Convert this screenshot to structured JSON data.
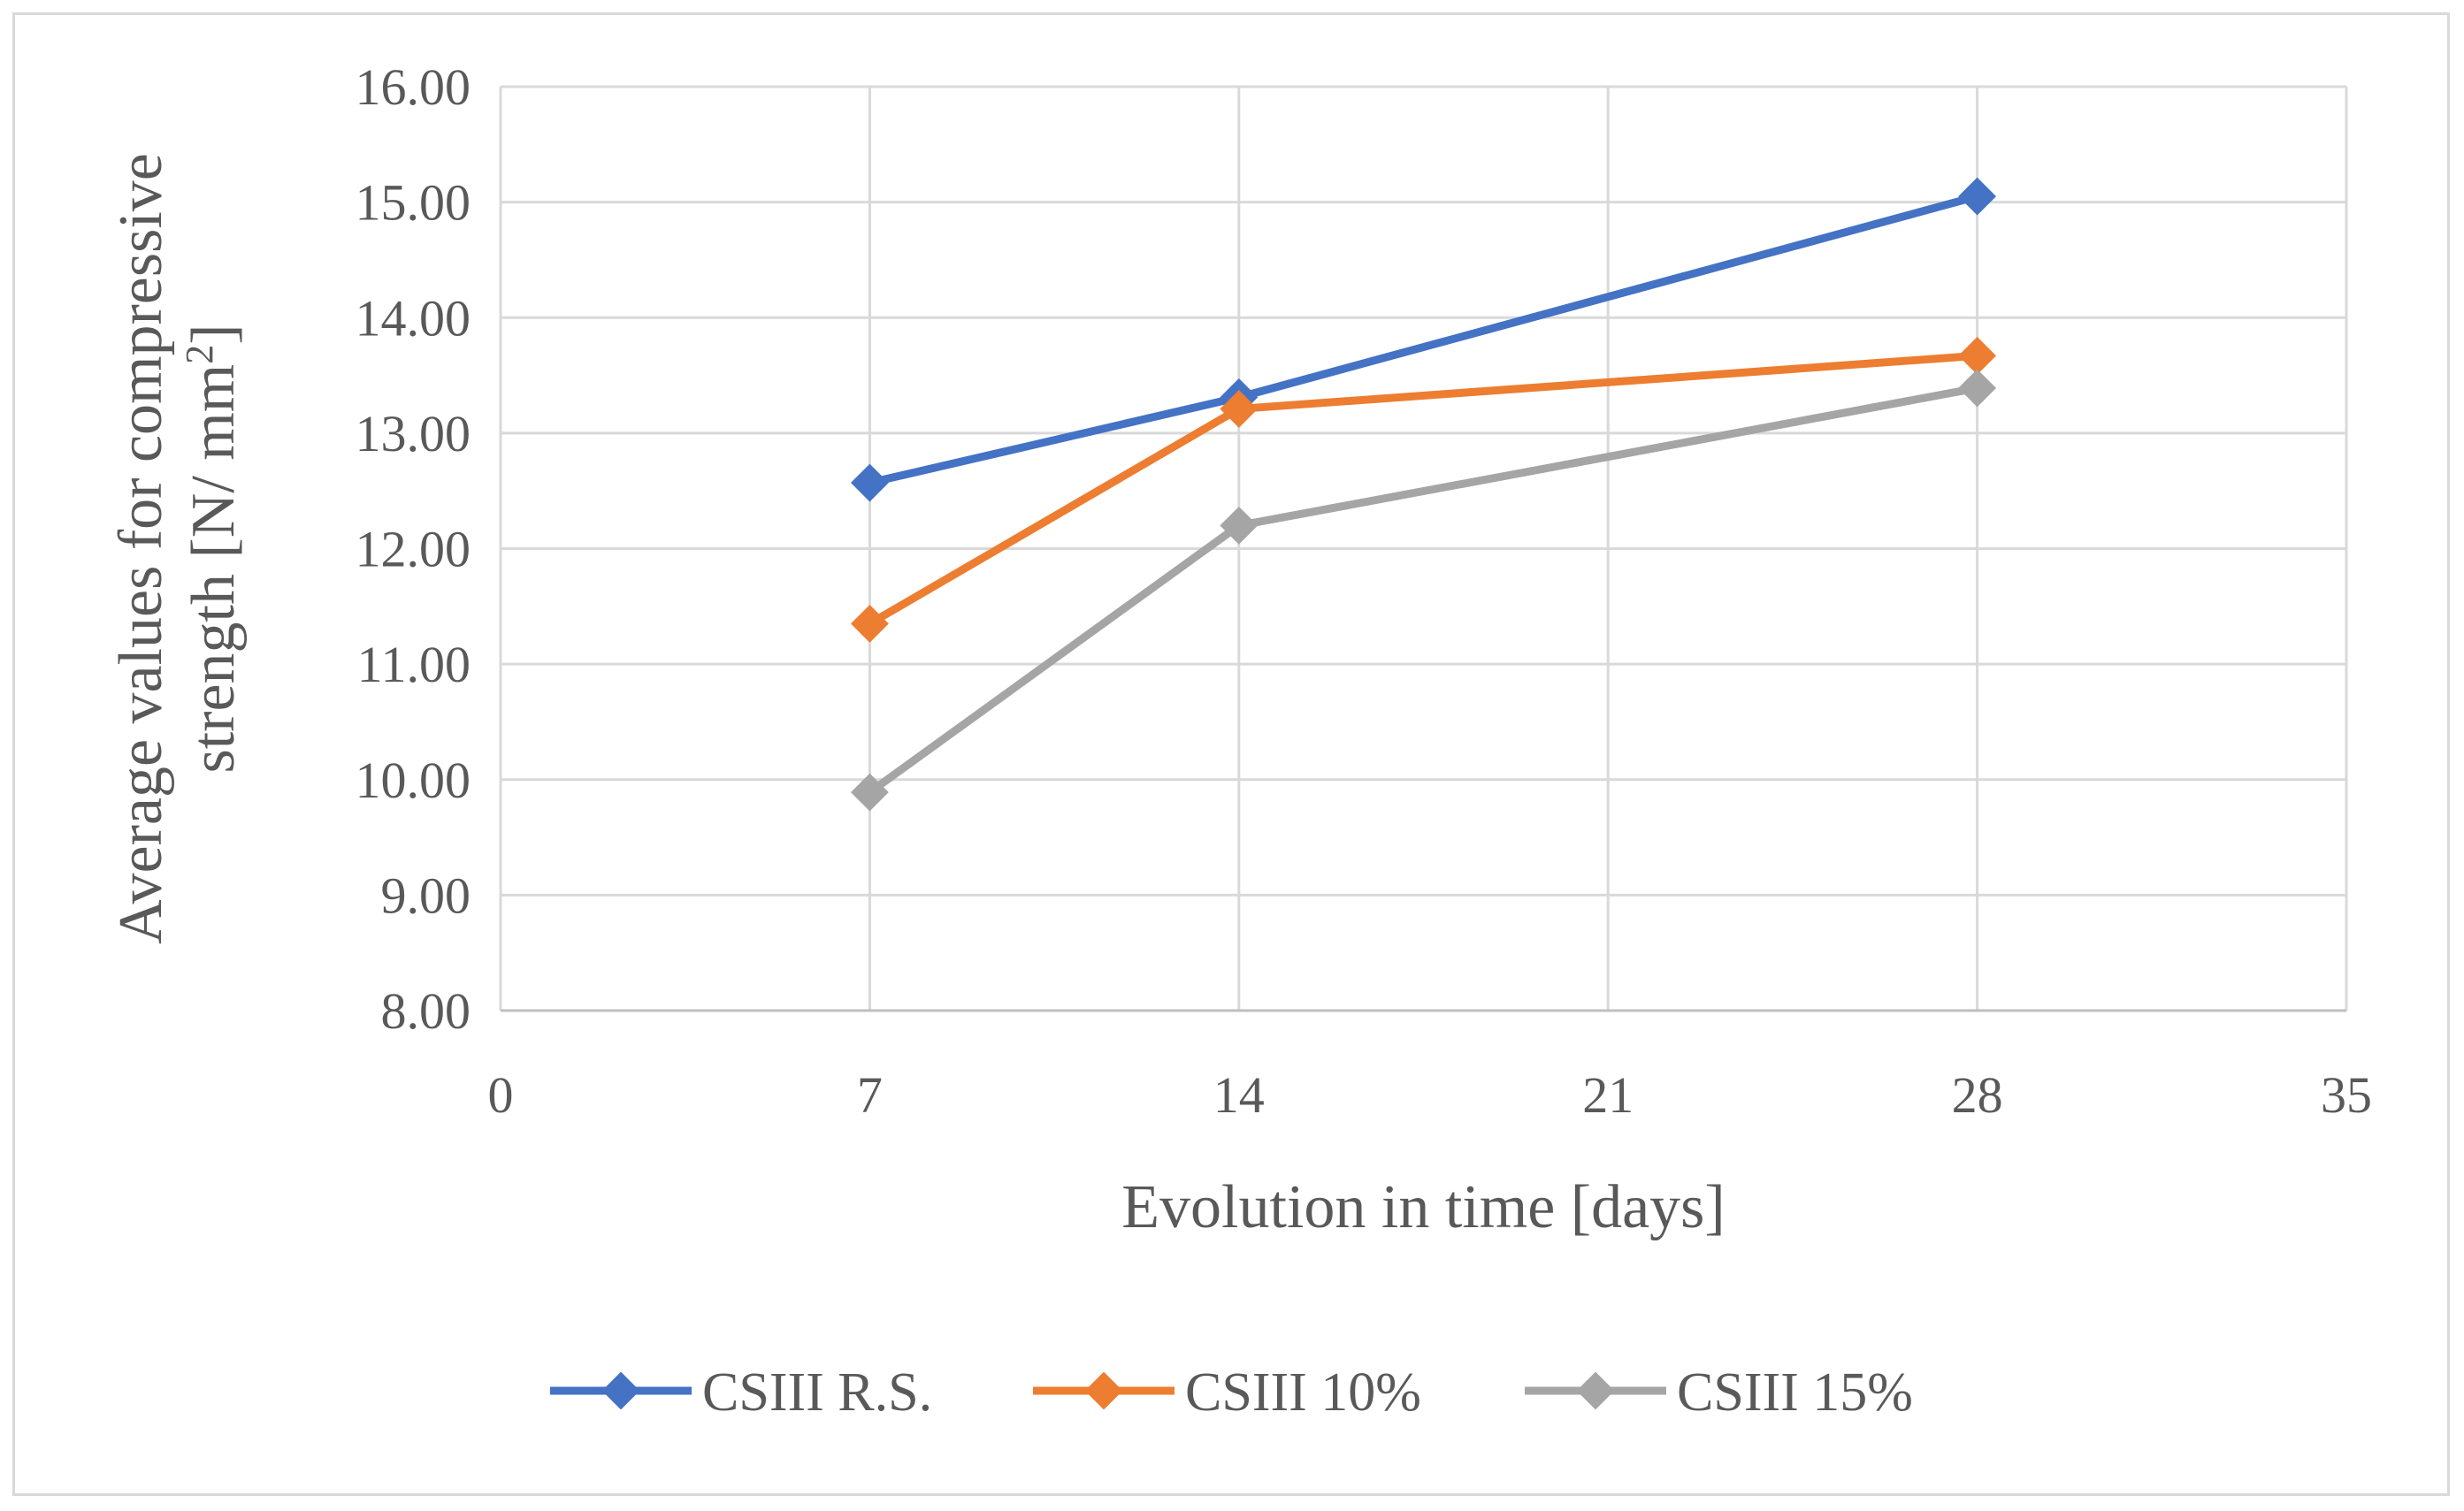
{
  "chart_data": {
    "type": "line",
    "title": "",
    "xlabel": "Evolution in time [days]",
    "ylabel_lines": [
      "Average values for compressive",
      "strength [N/ mm"
    ],
    "ylabel_superscript": "2",
    "ylabel_suffix": "]",
    "xlim": [
      0,
      35
    ],
    "ylim": [
      8,
      16
    ],
    "x_ticks": [
      0,
      7,
      14,
      21,
      28,
      35
    ],
    "x_tick_labels": [
      "0",
      "7",
      "14",
      "21",
      "28",
      "35"
    ],
    "y_ticks": [
      8,
      9,
      10,
      11,
      12,
      13,
      14,
      15,
      16
    ],
    "y_tick_labels": [
      "8.00",
      "9.00",
      "10.00",
      "11.00",
      "12.00",
      "13.00",
      "14.00",
      "15.00",
      "16.00"
    ],
    "grid": true,
    "legend_position": "bottom",
    "marker": "diamond",
    "x": [
      7,
      14,
      28
    ],
    "series": [
      {
        "name": "CSIII R.S.",
        "color": "#4472c4",
        "values": [
          12.57,
          13.31,
          15.05
        ]
      },
      {
        "name": "CSIII 10%",
        "color": "#ed7d31",
        "values": [
          11.35,
          13.21,
          13.67
        ]
      },
      {
        "name": "CSIII 15%",
        "color": "#a5a5a5",
        "values": [
          9.89,
          12.2,
          13.39
        ]
      }
    ]
  }
}
